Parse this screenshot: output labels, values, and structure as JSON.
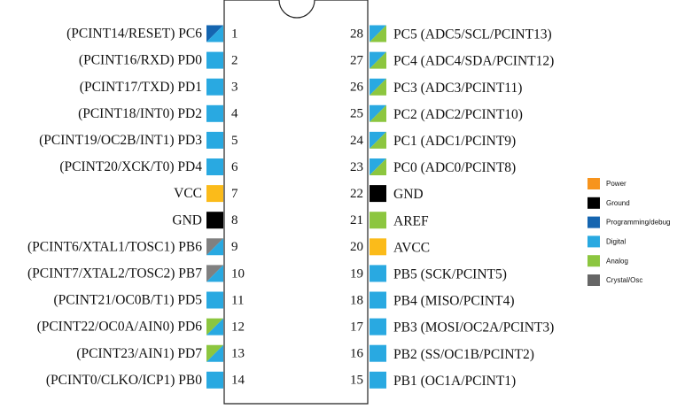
{
  "chip": {
    "left_pins": [
      {
        "number": "1",
        "label": "(PCINT14/RESET) PC6",
        "colors": [
          "#1565b0",
          "#29a9e1"
        ]
      },
      {
        "number": "2",
        "label": "(PCINT16/RXD) PD0",
        "colors": [
          "#29a9e1"
        ]
      },
      {
        "number": "3",
        "label": "(PCINT17/TXD) PD1",
        "colors": [
          "#29a9e1"
        ]
      },
      {
        "number": "4",
        "label": "(PCINT18/INT0) PD2",
        "colors": [
          "#29a9e1"
        ]
      },
      {
        "number": "5",
        "label": "(PCINT19/OC2B/INT1) PD3",
        "colors": [
          "#29a9e1"
        ]
      },
      {
        "number": "6",
        "label": "(PCINT20/XCK/T0) PD4",
        "colors": [
          "#29a9e1"
        ]
      },
      {
        "number": "7",
        "label": "VCC",
        "colors": [
          "#fbbb1a"
        ]
      },
      {
        "number": "8",
        "label": "GND",
        "colors": [
          "#000000"
        ]
      },
      {
        "number": "9",
        "label": "(PCINT6/XTAL1/TOSC1) PB6",
        "colors": [
          "#808080",
          "#29a9e1"
        ]
      },
      {
        "number": "10",
        "label": "(PCINT7/XTAL2/TOSC2) PB7",
        "colors": [
          "#808080",
          "#29a9e1"
        ]
      },
      {
        "number": "11",
        "label": "(PCINT21/OC0B/T1) PD5",
        "colors": [
          "#29a9e1"
        ]
      },
      {
        "number": "12",
        "label": "(PCINT22/OC0A/AIN0) PD6",
        "colors": [
          "#8cc63f",
          "#29a9e1"
        ]
      },
      {
        "number": "13",
        "label": "(PCINT23/AIN1) PD7",
        "colors": [
          "#8cc63f",
          "#29a9e1"
        ]
      },
      {
        "number": "14",
        "label": "(PCINT0/CLKO/ICP1) PB0",
        "colors": [
          "#29a9e1"
        ]
      }
    ],
    "right_pins": [
      {
        "number": "28",
        "label": "PC5 (ADC5/SCL/PCINT13)",
        "colors": [
          "#29a9e1",
          "#8cc63f"
        ]
      },
      {
        "number": "27",
        "label": "PC4 (ADC4/SDA/PCINT12)",
        "colors": [
          "#29a9e1",
          "#8cc63f"
        ]
      },
      {
        "number": "26",
        "label": "PC3 (ADC3/PCINT11)",
        "colors": [
          "#29a9e1",
          "#8cc63f"
        ]
      },
      {
        "number": "25",
        "label": "PC2 (ADC2/PCINT10)",
        "colors": [
          "#29a9e1",
          "#8cc63f"
        ]
      },
      {
        "number": "24",
        "label": "PC1 (ADC1/PCINT9)",
        "colors": [
          "#29a9e1",
          "#8cc63f"
        ]
      },
      {
        "number": "23",
        "label": "PC0 (ADC0/PCINT8)",
        "colors": [
          "#29a9e1",
          "#8cc63f"
        ]
      },
      {
        "number": "22",
        "label": "GND",
        "colors": [
          "#000000"
        ]
      },
      {
        "number": "21",
        "label": "AREF",
        "colors": [
          "#8cc63f"
        ]
      },
      {
        "number": "20",
        "label": "AVCC",
        "colors": [
          "#fbbb1a"
        ]
      },
      {
        "number": "19",
        "label": "PB5 (SCK/PCINT5)",
        "colors": [
          "#29a9e1"
        ]
      },
      {
        "number": "18",
        "label": "PB4 (MISO/PCINT4)",
        "colors": [
          "#29a9e1"
        ]
      },
      {
        "number": "17",
        "label": "PB3 (MOSI/OC2A/PCINT3)",
        "colors": [
          "#29a9e1"
        ]
      },
      {
        "number": "16",
        "label": "PB2 (SS/OC1B/PCINT2)",
        "colors": [
          "#29a9e1"
        ]
      },
      {
        "number": "15",
        "label": "PB1 (OC1A/PCINT1)",
        "colors": [
          "#29a9e1"
        ]
      }
    ]
  },
  "legend": [
    {
      "name": "Power",
      "color": "#f7941d"
    },
    {
      "name": "Ground",
      "color": "#000000"
    },
    {
      "name": "Programming/debug",
      "color": "#1565b0"
    },
    {
      "name": "Digital",
      "color": "#29a9e1"
    },
    {
      "name": "Analog",
      "color": "#8cc63f"
    },
    {
      "name": "Crystal/Osc",
      "color": "#666666"
    }
  ]
}
